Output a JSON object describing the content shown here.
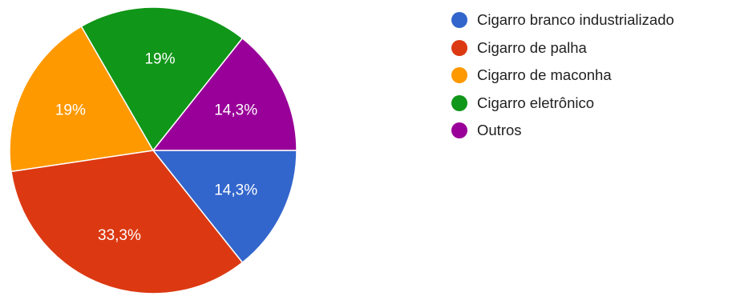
{
  "chart_data": {
    "type": "pie",
    "categories": [
      "Cigarro branco industrializado",
      "Cigarro de palha",
      "Cigarro de maconha",
      "Cigarro eletrônico",
      "Outros"
    ],
    "values": [
      14.3,
      33.3,
      19,
      19,
      14.3
    ],
    "data_labels": [
      "14,3%",
      "33,3%",
      "19%",
      "19%",
      "14,3%"
    ],
    "colors": [
      "#3366cc",
      "#dc3912",
      "#ff9900",
      "#109618",
      "#990099"
    ],
    "legend_position": "right",
    "start": "3 o'clock",
    "direction": "clockwise"
  }
}
